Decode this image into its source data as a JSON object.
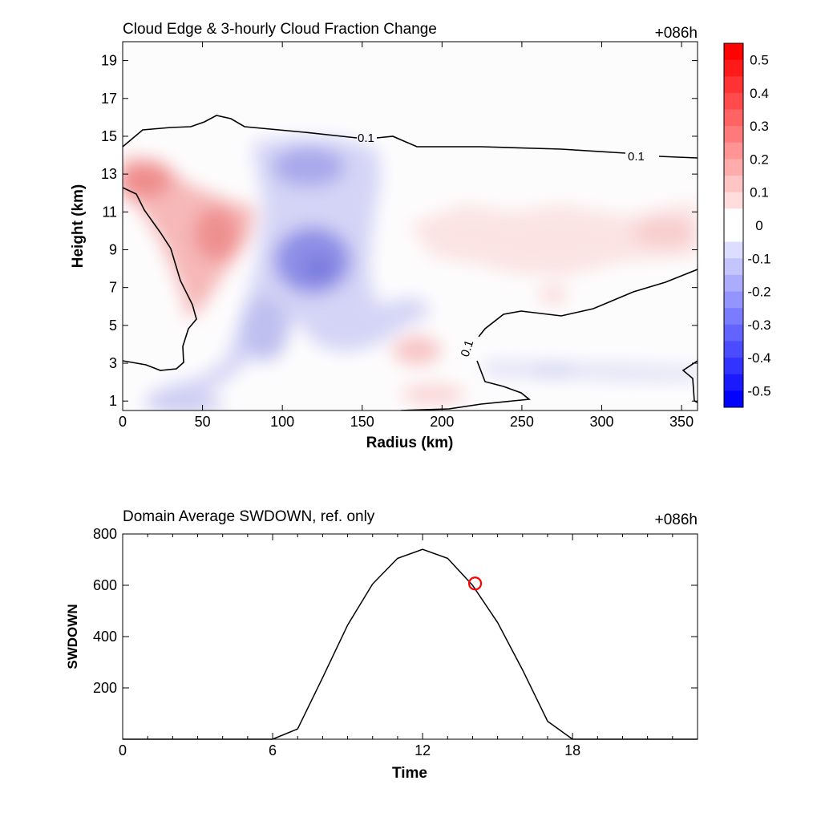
{
  "colors": {
    "positive": "#ff0000",
    "negative": "#0000ff",
    "contour": "#000000",
    "marker": "#ff0000"
  },
  "chart_data": [
    {
      "type": "heatmap",
      "title": "Cloud Edge & 3-hourly Cloud Fraction Change",
      "time_label": "+086h",
      "xlabel": "Radius (km)",
      "ylabel": "Height (km)",
      "xlim": [
        0,
        360
      ],
      "ylim": [
        0.5,
        20
      ],
      "xticks": [
        "0",
        "50",
        "100",
        "150",
        "200",
        "250",
        "300",
        "350"
      ],
      "yticks": [
        "1",
        "3",
        "5",
        "7",
        "9",
        "11",
        "13",
        "15",
        "17",
        "19"
      ],
      "colorbar": {
        "range": [
          -0.55,
          0.55
        ],
        "labels": [
          "0.5",
          "0.4",
          "0.3",
          "0.2",
          "0.1",
          "0",
          "-0.1",
          "-0.2",
          "-0.3",
          "-0.4",
          "-0.5"
        ]
      },
      "contour_label": "0.1",
      "features": [
        {
          "name": "positive region upper-left",
          "x": 12,
          "y": 12.8,
          "value": 0.2
        },
        {
          "name": "positive region near 60 km",
          "x": 62,
          "y": 10,
          "value": 0.22
        },
        {
          "name": "negative core",
          "x": 122,
          "y": 8.2,
          "value": -0.25
        },
        {
          "name": "negative upper",
          "x": 115,
          "y": 13.4,
          "value": -0.18
        },
        {
          "name": "weak positive",
          "x": 183,
          "y": 3.5,
          "value": 0.1
        },
        {
          "name": "weak negative band",
          "x": 275,
          "y": 2.4,
          "value": -0.1
        }
      ]
    },
    {
      "type": "line",
      "title": "Domain Average SWDOWN, ref. only",
      "time_label": "+086h",
      "xlabel": "Time",
      "ylabel": "SWDOWN",
      "xlim": [
        0,
        23
      ],
      "ylim": [
        0,
        800
      ],
      "xticks": [
        0,
        6,
        12,
        18
      ],
      "yticks": [
        200,
        400,
        600,
        800
      ],
      "x": [
        0,
        1,
        2,
        3,
        4,
        5,
        6,
        7,
        8,
        9,
        10,
        11,
        12,
        13,
        14,
        15,
        16,
        17,
        18,
        19,
        20,
        21,
        22,
        23
      ],
      "values": [
        0,
        0,
        0,
        0,
        0,
        0,
        0,
        40,
        240,
        445,
        605,
        705,
        740,
        705,
        600,
        455,
        270,
        70,
        0,
        0,
        0,
        0,
        0,
        0
      ],
      "marker": {
        "x": 14.1,
        "y": 607
      }
    }
  ]
}
